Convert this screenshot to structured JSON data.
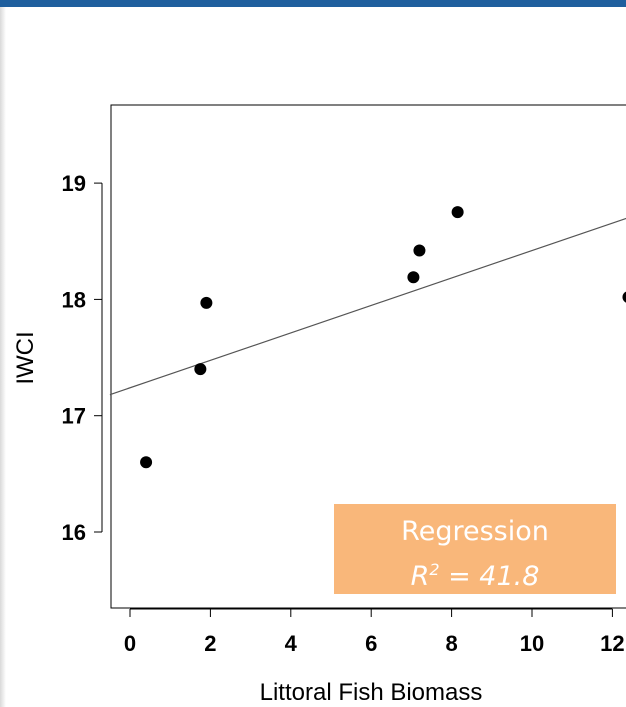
{
  "chart_data": {
    "type": "scatter",
    "xlabel": "Littoral Fish Biomass",
    "ylabel": "IWCI",
    "xlim": [
      0,
      12
    ],
    "ylim": [
      16,
      19
    ],
    "xticks": [
      "0",
      "2",
      "4",
      "6",
      "8",
      "10",
      "12"
    ],
    "yticks": [
      "16",
      "17",
      "18",
      "19"
    ],
    "points": [
      {
        "x": 0.4,
        "y": 16.6
      },
      {
        "x": 1.75,
        "y": 17.4
      },
      {
        "x": 1.9,
        "y": 17.97
      },
      {
        "x": 7.05,
        "y": 18.19
      },
      {
        "x": 7.2,
        "y": 18.42
      },
      {
        "x": 8.15,
        "y": 18.75
      },
      {
        "x": 12.4,
        "y": 18.02
      }
    ],
    "regression_line": {
      "intercept": 17.24,
      "slope": 0.118
    },
    "annotation": {
      "title": "Regression",
      "stat_symbol": "R",
      "stat_exponent": "2",
      "stat_value": " = 41.8",
      "background": "#f9b77a"
    },
    "grid": false
  }
}
